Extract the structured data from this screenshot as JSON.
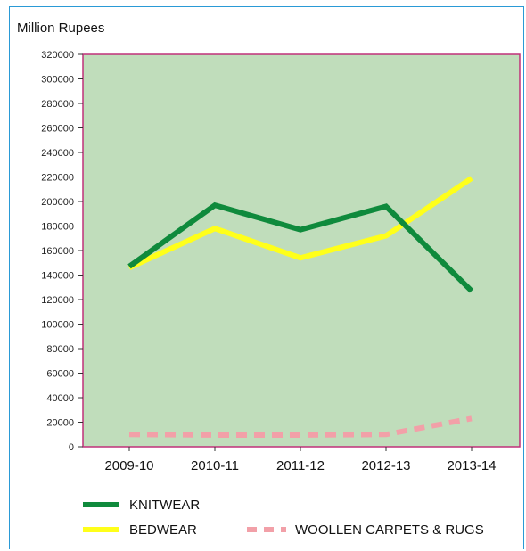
{
  "chart_data": {
    "type": "line",
    "title": "",
    "ylabel": "Million Rupees",
    "xlabel": "",
    "categories": [
      "2009-10",
      "2010-11",
      "2011-12",
      "2012-13",
      "2013-14"
    ],
    "ylim": [
      0,
      320000
    ],
    "yticks": [
      0,
      20000,
      40000,
      60000,
      80000,
      100000,
      120000,
      140000,
      160000,
      180000,
      200000,
      220000,
      240000,
      260000,
      280000,
      300000,
      320000
    ],
    "grid": false,
    "plot_background": "#c0ddbb",
    "plot_border_color": "#c0307a",
    "legend_placement": "bottom",
    "series": [
      {
        "name": "KNITWEAR",
        "values": [
          147000,
          197000,
          177000,
          196000,
          127000
        ],
        "color": "#0f8a3c",
        "style": "solid"
      },
      {
        "name": "BEDWEAR",
        "values": [
          146000,
          178000,
          154000,
          172000,
          219000
        ],
        "color": "#ffff1a",
        "style": "solid"
      },
      {
        "name": "WOOLLEN CARPETS & RUGS",
        "values": [
          10000,
          9500,
          9500,
          10000,
          23000
        ],
        "color": "#f2a0a8",
        "style": "dashed"
      }
    ]
  }
}
